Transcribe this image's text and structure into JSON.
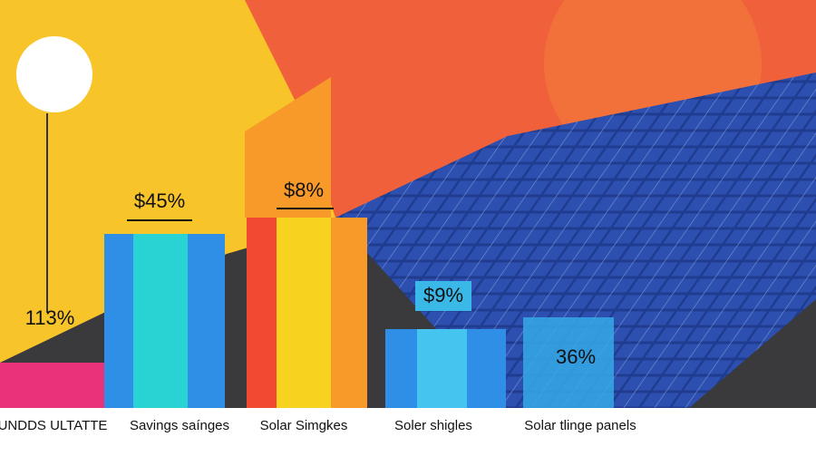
{
  "items": [
    {
      "value_label": "113%",
      "category": "UNDDS ULTATTE"
    },
    {
      "value_label": "$45%",
      "category": "Savings saínges"
    },
    {
      "value_label": "$8%",
      "category": "Solar Simgkes"
    },
    {
      "value_label": "$9%",
      "category": "Soler shigles"
    },
    {
      "value_label": "36%",
      "category": "Solar tlinge panels"
    }
  ]
}
